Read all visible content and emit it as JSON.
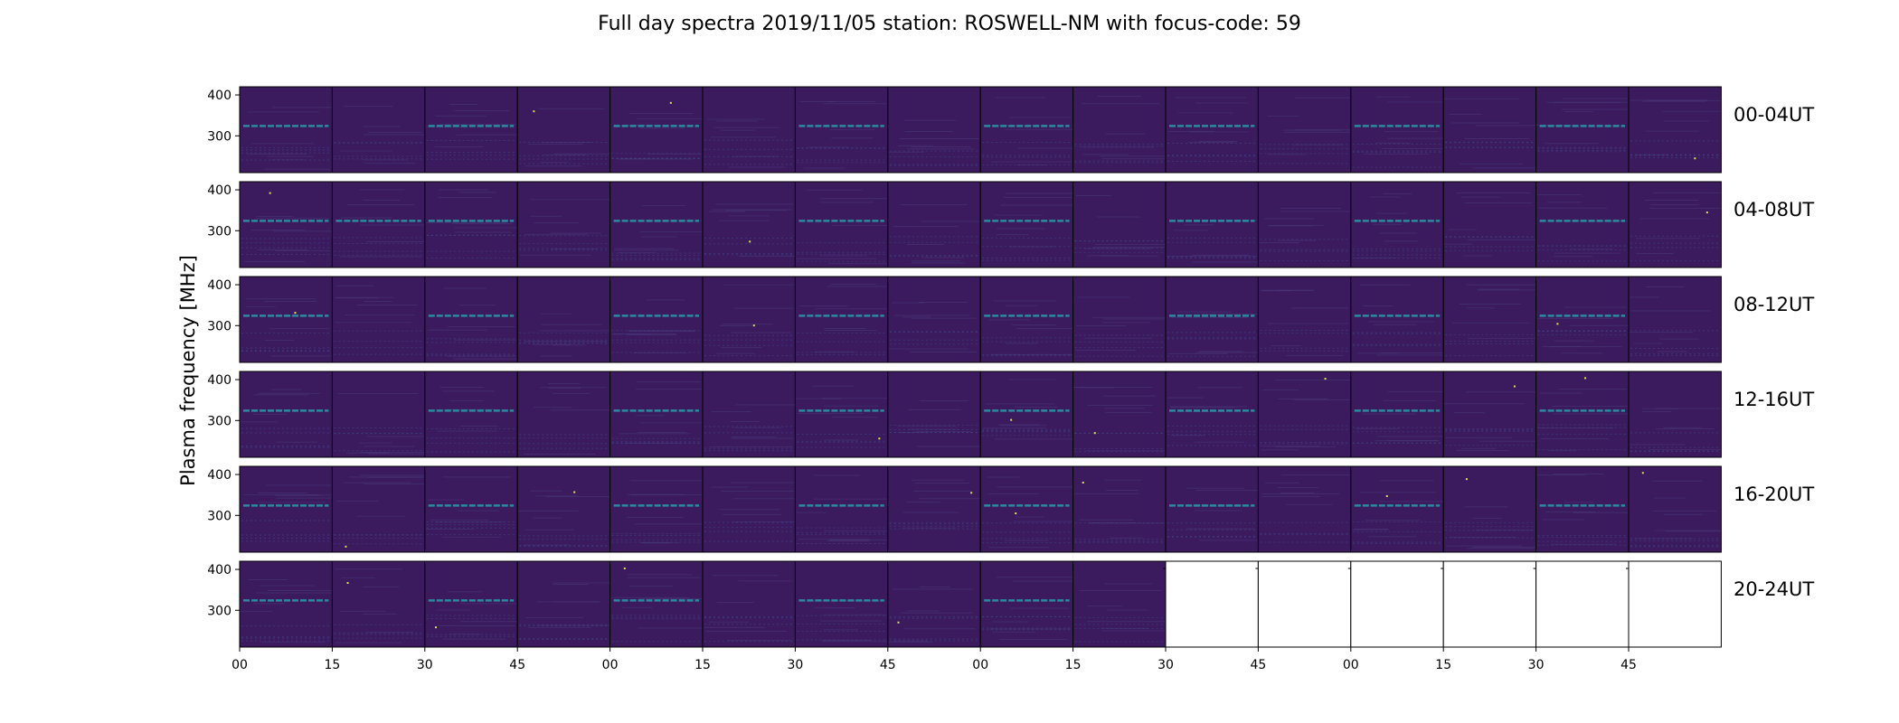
{
  "chart_data": {
    "type": "heatmap",
    "title": "Full day spectra 2019/11/05 station: ROSWELL-NM with focus-code: 59",
    "ylabel": "Plasma frequency [MHz]",
    "yticks": [
      "400",
      "300"
    ],
    "ylim": [
      210,
      420
    ],
    "xticks": [
      "00",
      "15",
      "30",
      "45",
      "00",
      "15",
      "30",
      "45",
      "00",
      "15",
      "30",
      "45",
      "00",
      "15",
      "30",
      "45"
    ],
    "colormap": {
      "background": "#3b1a5e",
      "line": "#2a8a9e",
      "bright": "#d8e84a"
    },
    "rows": [
      {
        "label": "00-04UT",
        "filled_panels": 16,
        "line_panels": [
          0,
          2,
          4,
          6,
          8,
          10,
          12,
          14
        ],
        "line_freq": 324
      },
      {
        "label": "04-08UT",
        "filled_panels": 16,
        "line_panels": [
          0,
          1,
          2,
          4,
          6,
          8,
          10,
          12,
          14
        ],
        "line_freq": 324
      },
      {
        "label": "08-12UT",
        "filled_panels": 16,
        "line_panels": [
          0,
          2,
          4,
          6,
          8,
          10,
          12,
          14
        ],
        "line_freq": 324
      },
      {
        "label": "12-16UT",
        "filled_panels": 16,
        "line_panels": [
          0,
          2,
          4,
          6,
          8,
          10,
          12,
          14
        ],
        "line_freq": 324
      },
      {
        "label": "16-20UT",
        "filled_panels": 16,
        "line_panels": [
          0,
          2,
          4,
          6,
          8,
          10,
          12,
          14
        ],
        "line_freq": 324
      },
      {
        "label": "20-24UT",
        "filled_panels": 10,
        "line_panels": [
          0,
          2,
          4,
          6,
          8
        ],
        "line_freq": 324
      }
    ]
  }
}
